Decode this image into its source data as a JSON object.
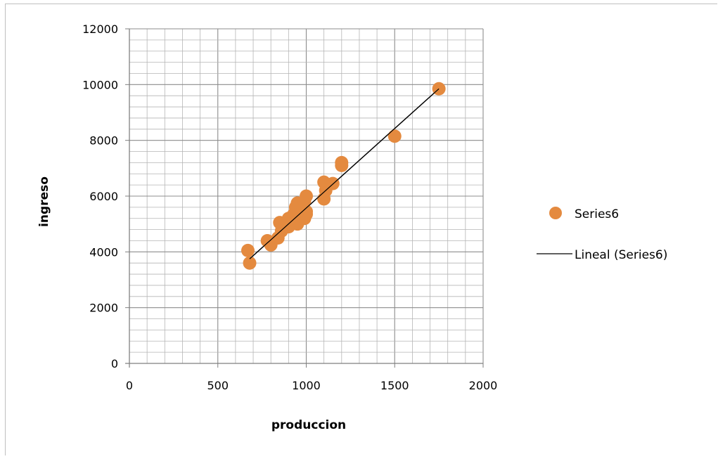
{
  "chart_data": {
    "type": "scatter",
    "xlabel": "produccion",
    "ylabel": "ingreso",
    "xlim": [
      0,
      2000
    ],
    "ylim": [
      0,
      12000
    ],
    "x_ticks": [
      "0",
      "500",
      "1000",
      "1500",
      "2000"
    ],
    "y_ticks": [
      "0",
      "2000",
      "4000",
      "6000",
      "8000",
      "10000",
      "12000"
    ],
    "grid": "major and minor",
    "legend_position": "right",
    "series": [
      {
        "name": "Series6",
        "color": "#e48a3f",
        "points": [
          [
            670,
            4050
          ],
          [
            680,
            3600
          ],
          [
            780,
            4400
          ],
          [
            800,
            4250
          ],
          [
            840,
            4500
          ],
          [
            850,
            5050
          ],
          [
            860,
            4750
          ],
          [
            880,
            5000
          ],
          [
            900,
            5200
          ],
          [
            900,
            4900
          ],
          [
            920,
            5100
          ],
          [
            930,
            5350
          ],
          [
            940,
            5600
          ],
          [
            950,
            5750
          ],
          [
            950,
            5000
          ],
          [
            960,
            5300
          ],
          [
            970,
            5500
          ],
          [
            980,
            5650
          ],
          [
            990,
            5800
          ],
          [
            990,
            5200
          ],
          [
            1000,
            5450
          ],
          [
            1000,
            6000
          ],
          [
            1000,
            5350
          ],
          [
            1100,
            6500
          ],
          [
            1100,
            5900
          ],
          [
            1110,
            6200
          ],
          [
            1150,
            6450
          ],
          [
            1200,
            7200
          ],
          [
            1200,
            7100
          ],
          [
            1500,
            8150
          ],
          [
            1750,
            9850
          ]
        ]
      }
    ],
    "trendline": {
      "name": "Lineal (Series6)",
      "type": "linear",
      "x": [
        680,
        1750
      ],
      "y": [
        3750,
        9850
      ],
      "color": "#000000"
    }
  }
}
